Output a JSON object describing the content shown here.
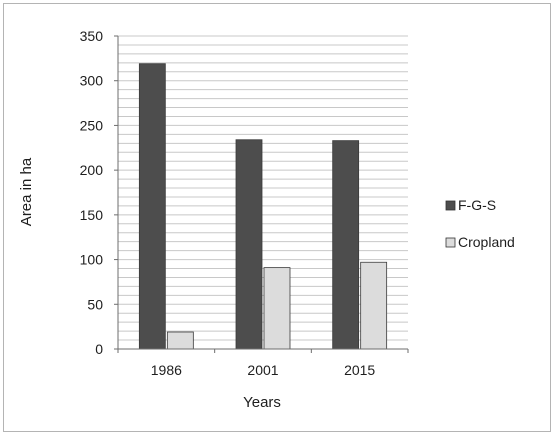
{
  "chart_data": {
    "type": "bar",
    "categories": [
      "1986",
      "2001",
      "2015"
    ],
    "series": [
      {
        "name": "F-G-S",
        "values": [
          319,
          234,
          233
        ],
        "color": "#4d4d4d"
      },
      {
        "name": "Cropland",
        "values": [
          19,
          91,
          97
        ],
        "color": "#dcdcdc"
      }
    ],
    "xlabel": "Years",
    "ylabel": "Area in ha",
    "ylim": [
      0,
      350
    ],
    "yticks": [
      "0",
      "50",
      "100",
      "150",
      "200",
      "250",
      "300",
      "350"
    ],
    "grid": true,
    "legend_position": "right"
  }
}
